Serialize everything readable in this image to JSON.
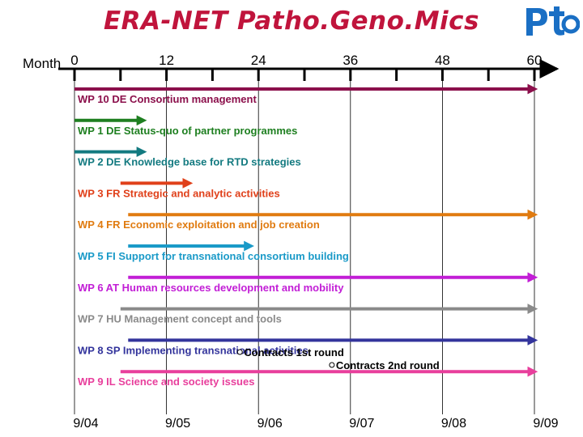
{
  "title": "ERA-NET Patho.Geno.Mics",
  "logo_text": "Pto",
  "colors": {
    "title": "#c0143c",
    "logo": "#1a6fc4"
  },
  "chart_data": {
    "type": "gantt",
    "axis": {
      "label": "Month",
      "ticks": [
        0,
        12,
        24,
        36,
        48,
        60
      ],
      "minor_every": 6,
      "range": [
        0,
        60
      ]
    },
    "date_labels": [
      {
        "month": 0,
        "text": "9/04"
      },
      {
        "month": 12,
        "text": "9/05"
      },
      {
        "month": 24,
        "text": "9/06"
      },
      {
        "month": 36,
        "text": "9/07"
      },
      {
        "month": 48,
        "text": "9/08"
      },
      {
        "month": 60,
        "text": "9/09"
      }
    ],
    "work_packages": [
      {
        "label": "WP 10 DE Consortium management",
        "start": 0,
        "end": 60,
        "color": "#8b0f4b"
      },
      {
        "label": "WP 1 DE Status-quo of partner programmes",
        "start": 0,
        "end": 9,
        "color": "#1e7f20"
      },
      {
        "label": "WP 2 DE Knowledge base for RTD strategies",
        "start": 0,
        "end": 9,
        "color": "#137a80"
      },
      {
        "label": "WP 3 FR Strategic and analytic activities",
        "start": 6,
        "end": 15,
        "color": "#e0401a"
      },
      {
        "label": "WP 4 FR Economic exploitation and job creation",
        "start": 7,
        "end": 60,
        "color": "#e07b10"
      },
      {
        "label": "WP 5 FI Support for transnational consortium building",
        "start": 7,
        "end": 23,
        "color": "#1a9ac8"
      },
      {
        "label": "WP 6 AT Human resources development and mobility",
        "start": 7,
        "end": 60,
        "color": "#c21ed6"
      },
      {
        "label": "WP 7 HU Management concept and tools",
        "start": 6,
        "end": 60,
        "color": "#8a8a8a"
      },
      {
        "label": "WP 8 SP Implementing transnational activities",
        "start": 7,
        "end": 60,
        "color": "#33349c"
      },
      {
        "label": "WP 9 IL Science and society issues",
        "start": 6,
        "end": 60,
        "color": "#e83f9c"
      }
    ],
    "milestones": [
      {
        "label": "Contracts 1st round",
        "month": 22
      },
      {
        "label": "Contracts 2nd round",
        "month": 34
      }
    ]
  }
}
